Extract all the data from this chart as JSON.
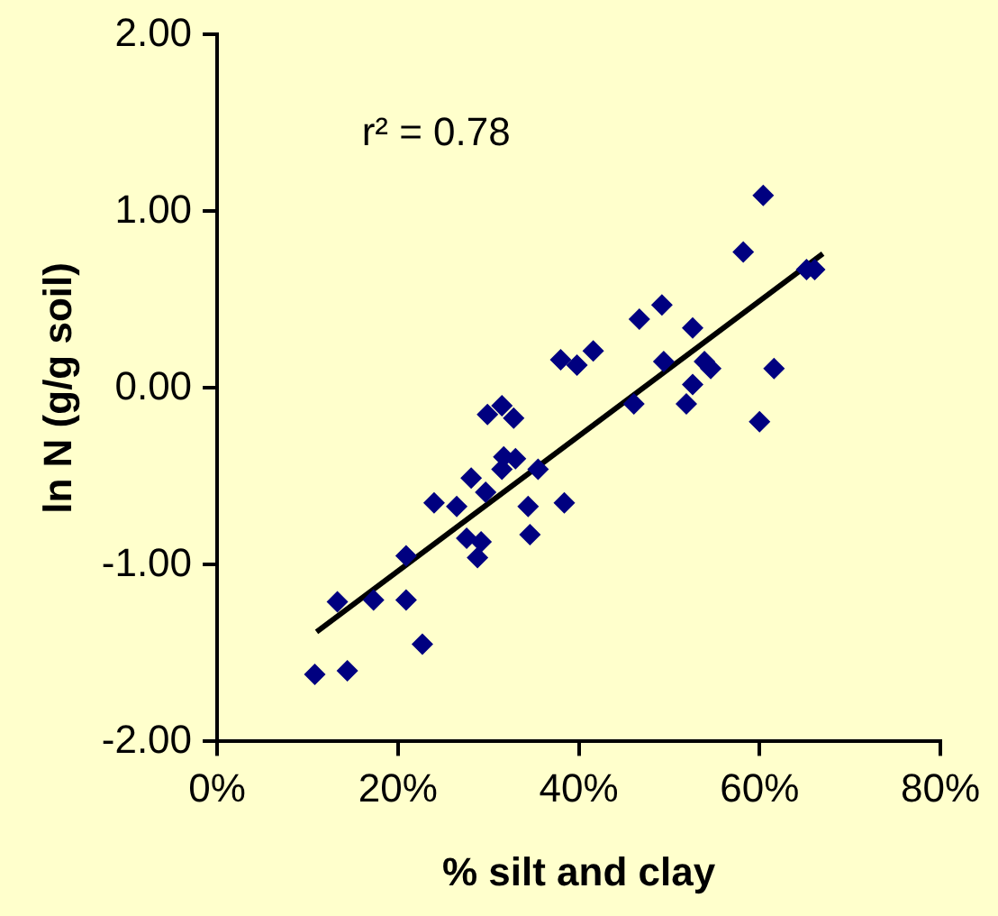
{
  "chart_data": {
    "type": "scatter",
    "xlabel": "% silt and clay",
    "ylabel": "ln N (g/g soil)",
    "annotations": [
      "r² = 0.78"
    ],
    "xlim": [
      0,
      80
    ],
    "xticks": [
      {
        "value": 0,
        "label": "0%"
      },
      {
        "value": 20,
        "label": "20%"
      },
      {
        "value": 40,
        "label": "40%"
      },
      {
        "value": 60,
        "label": "60%"
      },
      {
        "value": 80,
        "label": "80%"
      }
    ],
    "ylim": [
      -2,
      2
    ],
    "yticks": [
      {
        "value": -2,
        "label": "-2.00"
      },
      {
        "value": -1,
        "label": "-1.00"
      },
      {
        "value": 0,
        "label": "0.00"
      },
      {
        "value": 1,
        "label": "1.00"
      },
      {
        "value": 2,
        "label": "2.00"
      }
    ],
    "grid": false,
    "legend": false,
    "marker": "diamond",
    "series": [
      {
        "color": "#000080",
        "x": [
          10.8,
          14.4,
          13.3,
          17.3,
          20.9,
          22.7,
          20.9,
          24.0,
          26.5,
          28.1,
          29.7,
          27.6,
          29.2,
          28.8,
          31.5,
          33.0,
          31.7,
          29.9,
          31.5,
          32.8,
          35.5,
          34.4,
          34.6,
          38.4,
          38.0,
          39.8,
          41.6,
          46.7,
          49.2,
          52.6,
          49.4,
          53.9,
          54.6,
          61.6,
          52.6,
          51.9,
          46.1,
          60.0,
          60.4,
          58.2,
          65.2,
          66.1
        ],
        "values": [
          -1.62,
          -1.6,
          -1.21,
          -1.2,
          -1.2,
          -1.45,
          -0.95,
          -0.65,
          -0.67,
          -0.51,
          -0.59,
          -0.85,
          -0.87,
          -0.96,
          -0.46,
          -0.4,
          -0.39,
          -0.15,
          -0.1,
          -0.17,
          -0.46,
          -0.67,
          -0.83,
          -0.65,
          0.16,
          0.13,
          0.21,
          0.39,
          0.47,
          0.34,
          0.15,
          0.15,
          0.11,
          0.11,
          0.02,
          -0.09,
          -0.09,
          -0.19,
          1.09,
          0.77,
          0.67,
          0.67
        ]
      },
      {
        "type": "line",
        "color": "#000000",
        "marker": "none",
        "x": [
          11,
          67
        ],
        "values": [
          -1.38,
          0.76
        ]
      }
    ]
  }
}
